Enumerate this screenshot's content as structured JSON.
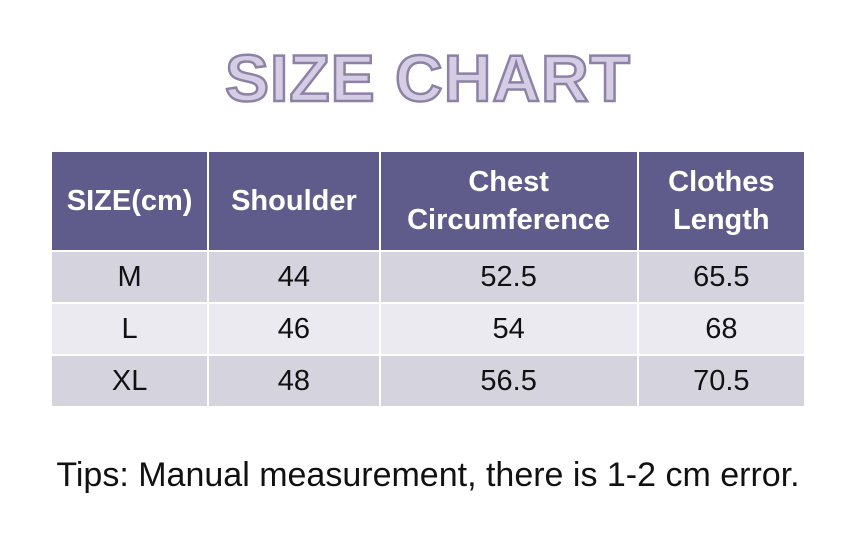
{
  "title": "SIZE CHART",
  "table": {
    "headers": {
      "size": "SIZE(cm)",
      "shoulder": "Shoulder",
      "chest_line1": "Chest",
      "chest_line2": "Circumference",
      "length_line1": "Clothes",
      "length_line2": "Length"
    },
    "rows": [
      {
        "size": "M",
        "shoulder": "44",
        "chest": "52.5",
        "length": "65.5"
      },
      {
        "size": "L",
        "shoulder": "46",
        "chest": "54",
        "length": "68"
      },
      {
        "size": "XL",
        "shoulder": "48",
        "chest": "56.5",
        "length": "70.5"
      }
    ]
  },
  "tips": "Tips: Manual measurement, there is 1-2 cm error.",
  "colors": {
    "header_bg": "#5f5c8b",
    "row_dark": "#d5d3de",
    "row_light": "#ebeaf0",
    "title_fill": "#d4cde4",
    "title_stroke": "#8d82a6"
  }
}
